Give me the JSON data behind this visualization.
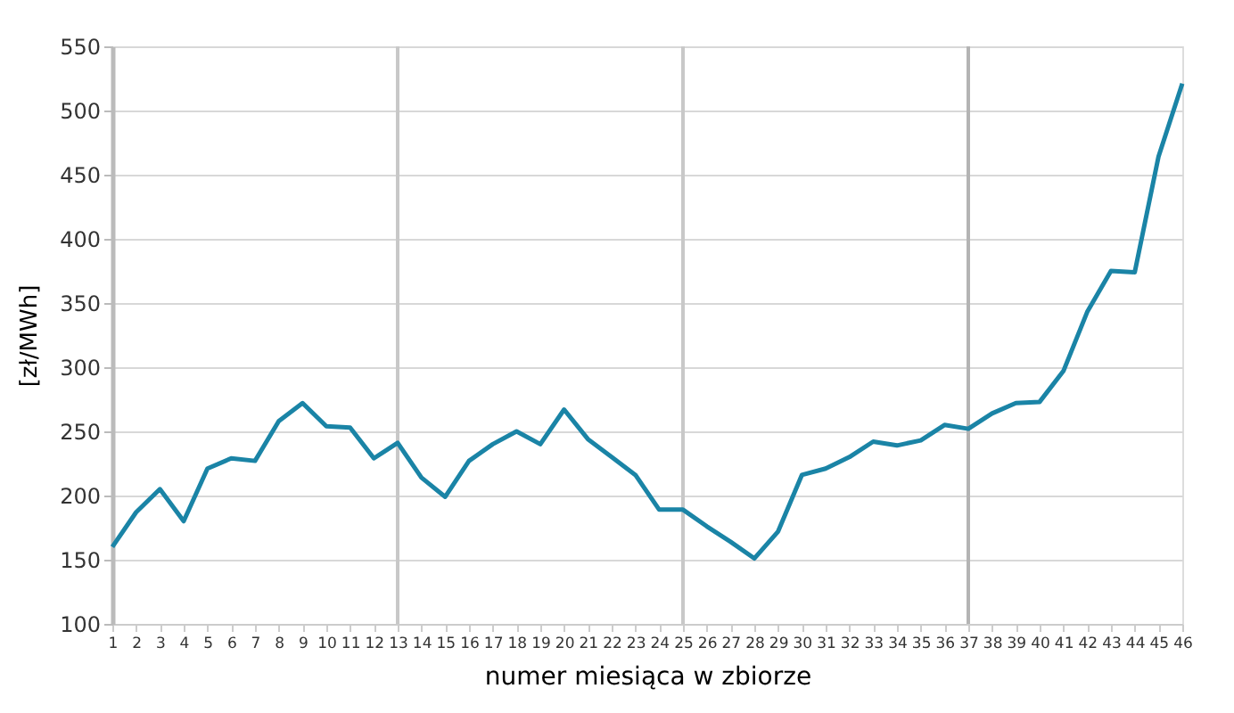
{
  "chart_data": {
    "type": "line",
    "xlabel": "numer miesiąca w zbiorze",
    "ylabel": "[zł/MWh]",
    "x": [
      1,
      2,
      3,
      4,
      5,
      6,
      7,
      8,
      9,
      10,
      11,
      12,
      13,
      14,
      15,
      16,
      17,
      18,
      19,
      20,
      21,
      22,
      23,
      24,
      25,
      26,
      27,
      28,
      29,
      30,
      31,
      32,
      33,
      34,
      35,
      36,
      37,
      38,
      39,
      40,
      41,
      42,
      43,
      44,
      45,
      46
    ],
    "series": [
      {
        "color": "#1a84a6",
        "values": [
          160,
          187,
          205,
          180,
          221,
          229,
          227,
          258,
          272,
          254,
          253,
          229,
          241,
          214,
          199,
          227,
          240,
          250,
          240,
          267,
          244,
          230,
          216,
          189,
          189,
          176,
          164,
          151,
          172,
          216,
          221,
          230,
          242,
          239,
          243,
          255,
          252,
          264,
          272,
          273,
          297,
          343,
          375,
          374,
          464,
          521
        ]
      }
    ],
    "xlim": [
      1,
      46
    ],
    "xticks": [
      1,
      2,
      3,
      4,
      5,
      6,
      7,
      8,
      9,
      10,
      11,
      12,
      13,
      14,
      15,
      16,
      17,
      18,
      19,
      20,
      21,
      22,
      23,
      24,
      25,
      26,
      27,
      28,
      29,
      30,
      31,
      32,
      33,
      34,
      35,
      36,
      37,
      38,
      39,
      40,
      41,
      42,
      43,
      44,
      45,
      46
    ],
    "ylim": [
      100,
      550
    ],
    "yticks": [
      100,
      150,
      200,
      250,
      300,
      350,
      400,
      450,
      500,
      550
    ],
    "grid": "y",
    "marker": "none",
    "line_style": "solid",
    "ref_lines": [
      {
        "axis": "x",
        "value": 13,
        "color": "#c8c8c8"
      },
      {
        "axis": "x",
        "value": 25,
        "color": "#c8c8c8"
      },
      {
        "axis": "x",
        "value": 37,
        "color": "#b4b4b4"
      }
    ]
  }
}
